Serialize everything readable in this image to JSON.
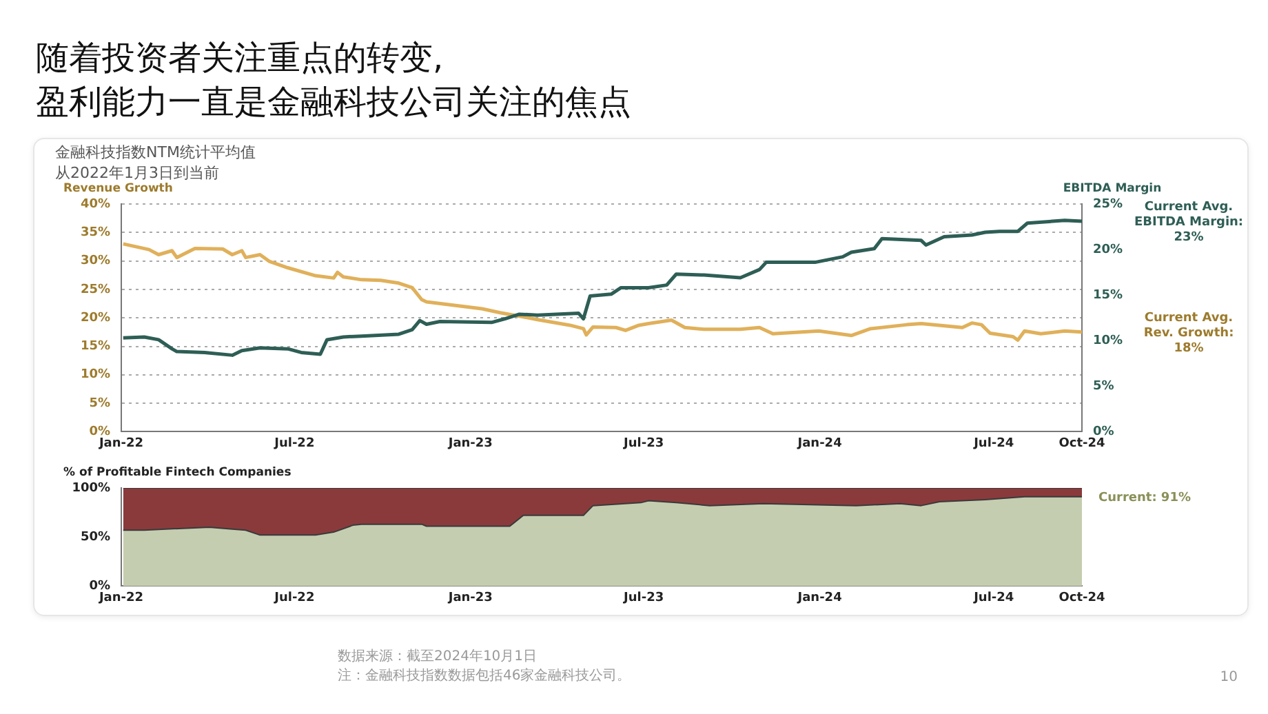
{
  "chart_data": [
    {
      "type": "line",
      "title": "随着投资者关注重点的转变,\n盈利能力一直是金融科技公司关注的焦点",
      "subtitle": "金融科技指数NTM统计平均值从2022年1月3日到当前",
      "ylabel": "Revenue Growth",
      "y2label": "EBITDA Margin",
      "xlim": [
        "2022-01-01",
        "2024-10-01"
      ],
      "xticks": [
        {
          "value": "2022-01-01",
          "label": "Jan-22"
        },
        {
          "value": "2022-07-01",
          "label": "Jul-22"
        },
        {
          "value": "2023-01-01",
          "label": "Jan-23"
        },
        {
          "value": "2023-07-01",
          "label": "Jul-23"
        },
        {
          "value": "2024-01-01",
          "label": "Jan-24"
        },
        {
          "value": "2024-07-01",
          "label": "Jul-24"
        },
        {
          "value": "2024-10-01",
          "label": "Oct-24"
        }
      ],
      "ylim": [
        0,
        40
      ],
      "yticks": [
        {
          "value": 0,
          "label": "0%"
        },
        {
          "value": 5,
          "label": "5%"
        },
        {
          "value": 10,
          "label": "10%"
        },
        {
          "value": 15,
          "label": "15%"
        },
        {
          "value": 20,
          "label": "20%"
        },
        {
          "value": 25,
          "label": "25%"
        },
        {
          "value": 30,
          "label": "30%"
        },
        {
          "value": 35,
          "label": "35%"
        },
        {
          "value": 40,
          "label": "40%"
        }
      ],
      "y2lim": [
        0,
        25
      ],
      "y2ticks": [
        {
          "value": 0,
          "label": "0%"
        },
        {
          "value": 5,
          "label": "5%"
        },
        {
          "value": 10,
          "label": "10%"
        },
        {
          "value": 15,
          "label": "15%"
        },
        {
          "value": 20,
          "label": "20%"
        },
        {
          "value": 25,
          "label": "25%"
        }
      ],
      "grid": "y",
      "series": [
        {
          "color": "#2e5e55",
          "axis": "y2",
          "x": [
            "2022-01-03",
            "2022-01-25",
            "2022-02-09",
            "2022-02-23",
            "2022-02-28",
            "2022-03-29",
            "2022-04-27",
            "2022-05-07",
            "2022-05-26",
            "2022-06-24",
            "2022-07-08",
            "2022-07-28",
            "2022-08-04",
            "2022-08-21",
            "2022-09-09",
            "2022-10-18",
            "2022-11-01",
            "2022-11-09",
            "2022-11-16",
            "2022-11-30",
            "2023-01-23",
            "2023-02-06",
            "2023-02-21",
            "2023-03-12",
            "2023-04-24",
            "2023-04-29",
            "2023-05-06",
            "2023-05-28",
            "2023-06-07",
            "2023-07-06",
            "2023-07-25",
            "2023-08-04",
            "2023-09-02",
            "2023-10-10",
            "2023-10-30",
            "2023-11-06",
            "2023-12-27",
            "2024-01-25",
            "2024-02-03",
            "2024-02-27",
            "2024-03-06",
            "2024-04-16",
            "2024-04-21",
            "2024-05-10",
            "2024-06-08",
            "2024-06-22",
            "2024-07-07",
            "2024-07-26",
            "2024-08-05",
            "2024-09-13",
            "2024-10-01"
          ],
          "values": [
            10.3,
            10.4,
            10.1,
            9.1,
            8.8,
            8.7,
            8.4,
            8.9,
            9.2,
            9.1,
            8.7,
            8.5,
            10.1,
            10.4,
            10.5,
            10.7,
            11.2,
            12.2,
            11.8,
            12.1,
            12.0,
            12.4,
            12.9,
            12.8,
            13.0,
            12.4,
            14.9,
            15.1,
            15.8,
            15.8,
            16.1,
            17.3,
            17.2,
            16.9,
            17.8,
            18.6,
            18.6,
            19.2,
            19.7,
            20.1,
            21.2,
            21.0,
            20.5,
            21.4,
            21.6,
            21.9,
            22.0,
            22.0,
            22.9,
            23.2,
            23.1
          ]
        },
        {
          "color": "#e0b05a",
          "axis": "y",
          "x": [
            "2022-01-03",
            "2022-01-30",
            "2022-02-09",
            "2022-02-23",
            "2022-02-28",
            "2022-03-19",
            "2022-04-17",
            "2022-04-27",
            "2022-05-07",
            "2022-05-11",
            "2022-05-26",
            "2022-06-05",
            "2022-06-24",
            "2022-07-23",
            "2022-08-11",
            "2022-08-15",
            "2022-08-21",
            "2022-09-09",
            "2022-09-29",
            "2022-10-18",
            "2022-11-01",
            "2022-11-11",
            "2022-11-16",
            "2022-12-15",
            "2023-01-13",
            "2023-02-01",
            "2023-02-21",
            "2023-03-12",
            "2023-04-15",
            "2023-04-29",
            "2023-05-02",
            "2023-05-09",
            "2023-06-02",
            "2023-06-12",
            "2023-06-26",
            "2023-07-06",
            "2023-07-30",
            "2023-08-13",
            "2023-09-02",
            "2023-10-10",
            "2023-10-30",
            "2023-11-13",
            "2023-12-31",
            "2024-02-03",
            "2024-02-23",
            "2024-04-01",
            "2024-04-16",
            "2024-05-29",
            "2024-06-08",
            "2024-06-18",
            "2024-06-27",
            "2024-07-21",
            "2024-07-26",
            "2024-08-02",
            "2024-08-19",
            "2024-09-13",
            "2024-10-01"
          ],
          "values": [
            33.0,
            32.0,
            31.1,
            31.8,
            30.6,
            32.2,
            32.1,
            31.1,
            31.8,
            30.6,
            31.1,
            29.9,
            28.8,
            27.4,
            27.0,
            28.0,
            27.2,
            26.7,
            26.6,
            26.1,
            25.3,
            23.2,
            22.8,
            22.2,
            21.6,
            20.9,
            20.3,
            19.7,
            18.7,
            18.1,
            17.0,
            18.4,
            18.3,
            17.8,
            18.7,
            19.0,
            19.6,
            18.3,
            18.0,
            18.0,
            18.3,
            17.2,
            17.7,
            16.9,
            18.1,
            18.8,
            19.0,
            18.3,
            19.1,
            18.8,
            17.3,
            16.7,
            16.1,
            17.7,
            17.2,
            17.7,
            17.5
          ]
        }
      ],
      "annotations": [
        "Current Avg. EBITDA Margin: 23%",
        "Current Avg. Rev. Growth: 18%"
      ]
    },
    {
      "type": "area",
      "stacked": true,
      "ylabel": "% of Profitable Fintech Companies",
      "xlim": [
        "2022-01-01",
        "2024-10-01"
      ],
      "xticks": [
        {
          "value": "2022-01-01",
          "label": "Jan-22"
        },
        {
          "value": "2022-07-01",
          "label": "Jul-22"
        },
        {
          "value": "2023-01-01",
          "label": "Jan-23"
        },
        {
          "value": "2023-07-01",
          "label": "Jul-23"
        },
        {
          "value": "2024-01-01",
          "label": "Jan-24"
        },
        {
          "value": "2024-07-01",
          "label": "Jul-24"
        },
        {
          "value": "2024-10-01",
          "label": "Oct-24"
        }
      ],
      "ylim": [
        0,
        100
      ],
      "yticks": [
        {
          "value": 0,
          "label": "0%"
        },
        {
          "value": 50,
          "label": "50%"
        },
        {
          "value": 100,
          "label": "100%"
        }
      ],
      "x": [
        "2022-01-03",
        "2022-01-25",
        "2022-04-03",
        "2022-04-27",
        "2022-05-11",
        "2022-05-26",
        "2022-07-23",
        "2022-08-11",
        "2022-08-31",
        "2022-09-09",
        "2022-11-11",
        "2022-11-16",
        "2023-02-11",
        "2023-02-25",
        "2023-04-29",
        "2023-05-09",
        "2023-06-28",
        "2023-07-06",
        "2023-08-04",
        "2023-09-08",
        "2023-11-03",
        "2024-02-08",
        "2024-03-25",
        "2024-04-16",
        "2024-05-05",
        "2024-06-22",
        "2024-08-02",
        "2024-10-01"
      ],
      "series": [
        {
          "color": "#c5cdb0",
          "values": [
            57,
            57,
            60,
            58,
            57,
            52,
            52,
            55,
            62,
            63,
            63,
            61,
            61,
            72,
            72,
            82,
            85,
            87,
            85,
            82,
            84,
            82,
            84,
            82,
            86,
            88,
            91,
            91
          ]
        },
        {
          "color": "#8b3a3c",
          "values": [
            43,
            43,
            40,
            42,
            43,
            48,
            48,
            45,
            38,
            37,
            37,
            39,
            39,
            28,
            28,
            18,
            15,
            13,
            15,
            18,
            16,
            18,
            16,
            18,
            14,
            12,
            9,
            9
          ]
        }
      ],
      "annotations": [
        {
          "text": "Current: 91%",
          "x": "2024-10-01",
          "y": 91
        },
        "数据来源：截至2024年10月1日",
        "注：金融科技指数数据包括46家金融科技公司。",
        "10"
      ]
    }
  ]
}
